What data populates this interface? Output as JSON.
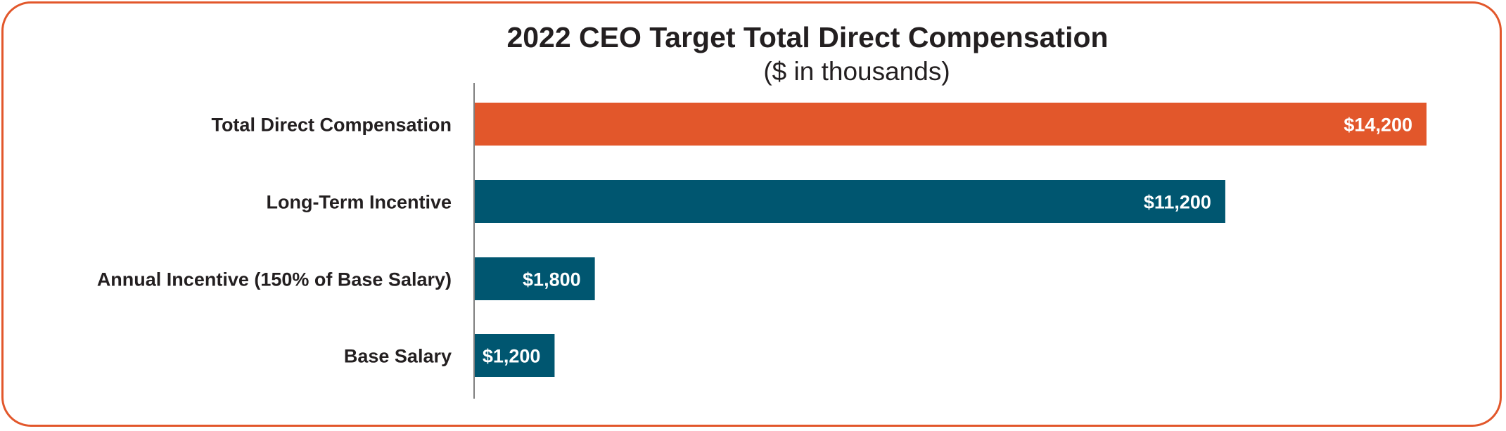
{
  "chart_data": {
    "type": "bar",
    "orientation": "horizontal",
    "title": "2022 CEO Target Total Direct Compensation",
    "subtitle": "($ in thousands)",
    "categories": [
      "Total Direct Compensation",
      "Long-Term Incentive",
      "Annual Incentive (150% of Base Salary)",
      "Base Salary"
    ],
    "values": [
      14200,
      11200,
      1800,
      1200
    ],
    "value_labels": [
      "$14,200",
      "$11,200",
      "$1,800",
      "$1,200"
    ],
    "bar_colors": [
      "#e2572b",
      "#005670",
      "#005670",
      "#005670"
    ],
    "xlim": [
      0,
      14200
    ],
    "grid": false,
    "legend": "none"
  },
  "colors": {
    "border": "#e2572b",
    "axis": "#7f7f7f",
    "text": "#231f20"
  }
}
